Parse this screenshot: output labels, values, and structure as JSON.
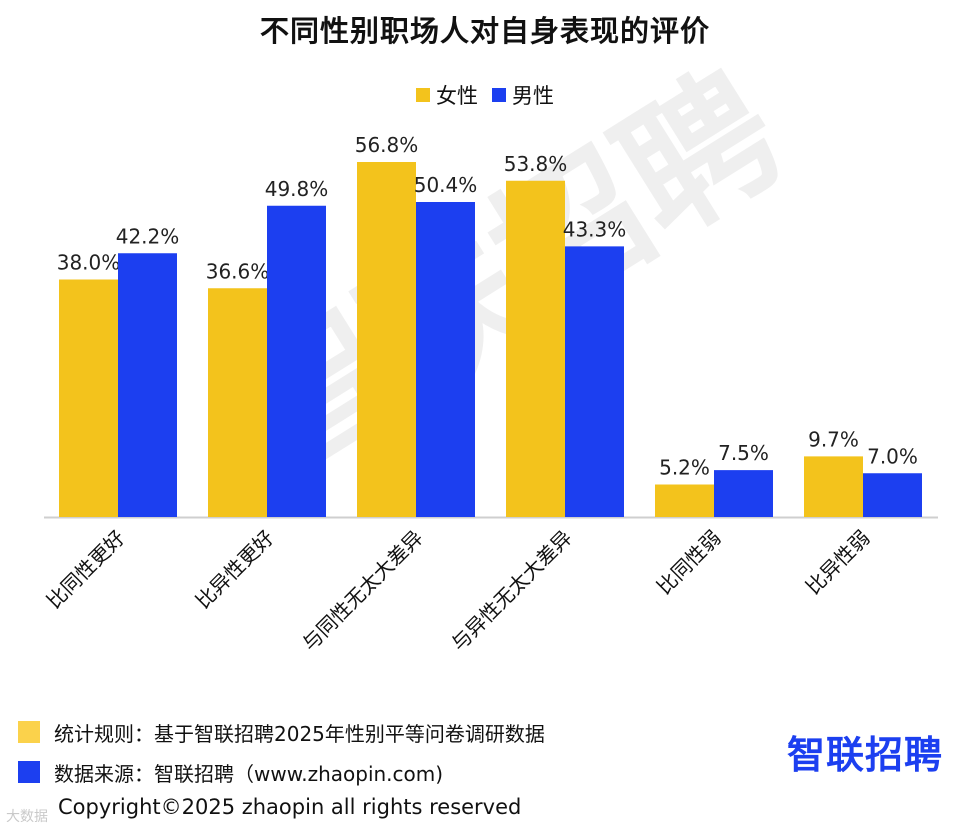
{
  "colors": {
    "female": "#f3c31c",
    "male": "#1c3ff0",
    "note_female": "#fbd24b",
    "note_male": "#1c3ff0",
    "brand": "#1c3ff0",
    "axis": "#cfcfcf"
  },
  "watermark": "智联招聘",
  "notes": {
    "rule": "统计规则：基于智联招聘2025年性别平等问卷调研数据",
    "source": "数据来源：智联招聘（www.zhaopin.com)"
  },
  "brand_logo": "智联招聘",
  "copyright": "Copyright©2025 zhaopin all rights reserved",
  "bottom_mark": "大数据",
  "chart_data": {
    "type": "bar",
    "title": "不同性别职场人对自身表现的评价",
    "categories": [
      "比同性更好",
      "比异性更好",
      "与同性无太大差异",
      "与异性无太大差异",
      "比同性弱",
      "比异性弱"
    ],
    "series": [
      {
        "name": "女性",
        "values": [
          38.0,
          36.6,
          56.8,
          53.8,
          5.2,
          9.7
        ],
        "labels": [
          "38.0%",
          "36.6%",
          "56.8%",
          "53.8%",
          "5.2%",
          "9.7%"
        ]
      },
      {
        "name": "男性",
        "values": [
          42.2,
          49.8,
          50.4,
          43.3,
          7.5,
          7.0
        ],
        "labels": [
          "42.2%",
          "49.8%",
          "50.4%",
          "43.3%",
          "7.5%",
          "7.0%"
        ]
      }
    ],
    "value_unit": "%",
    "legend_position": "top-center",
    "grid": false,
    "ylim": [
      0,
      60
    ]
  }
}
